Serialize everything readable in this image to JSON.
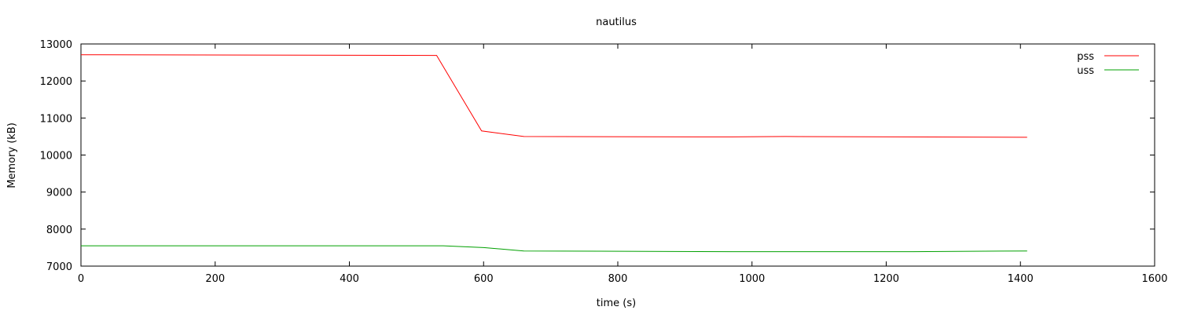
{
  "chart_data": {
    "type": "line",
    "title": "nautilus",
    "xlabel": "time (s)",
    "ylabel": "Memory (kB)",
    "xlim": [
      0,
      1600
    ],
    "ylim": [
      7000,
      13000
    ],
    "xticks": [
      "0",
      "200",
      "400",
      "600",
      "800",
      "1000",
      "1200",
      "1400",
      "1600"
    ],
    "yticks": [
      "7000",
      "8000",
      "9000",
      "10000",
      "11000",
      "12000",
      "13000"
    ],
    "grid": false,
    "legend_position": "top-right",
    "series": [
      {
        "name": "pss",
        "color": "#ff0000",
        "x": [
          0,
          530,
          597,
          660,
          970,
          1050,
          1410
        ],
        "y": [
          12710,
          12690,
          10650,
          10500,
          10490,
          10500,
          10480
        ]
      },
      {
        "name": "uss",
        "color": "#00a000",
        "x": [
          0,
          540,
          600,
          660,
          970,
          1240,
          1410
        ],
        "y": [
          7550,
          7550,
          7500,
          7410,
          7390,
          7390,
          7410
        ]
      }
    ]
  }
}
